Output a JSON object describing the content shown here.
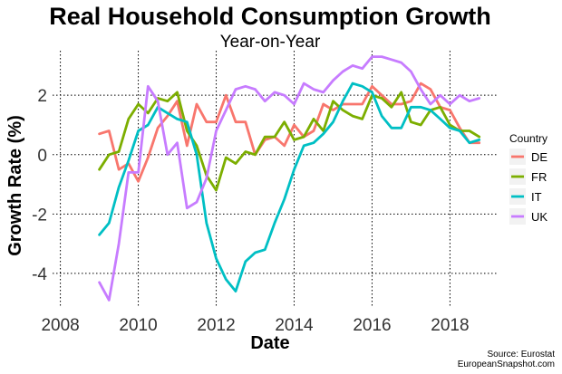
{
  "chart_data": {
    "type": "line",
    "title": "Real Household Consumption Growth",
    "subtitle": "Year-on-Year",
    "xlabel": "Date",
    "ylabel": "Growth Rate (%)",
    "xlim": [
      2007.8,
      2019.2
    ],
    "ylim": [
      -5.1,
      3.5
    ],
    "x_ticks": [
      2008,
      2010,
      2012,
      2014,
      2016,
      2018
    ],
    "y_ticks": [
      -4,
      -2,
      0,
      2
    ],
    "grid": true,
    "legend": {
      "title": "Country",
      "placement": "right"
    },
    "source_lines": [
      "Source: Eurostat",
      "EuropeanSnapshot.com"
    ],
    "x": [
      2009.0,
      2009.25,
      2009.5,
      2009.75,
      2010.0,
      2010.25,
      2010.5,
      2010.75,
      2011.0,
      2011.25,
      2011.5,
      2011.75,
      2012.0,
      2012.25,
      2012.5,
      2012.75,
      2013.0,
      2013.25,
      2013.5,
      2013.75,
      2014.0,
      2014.25,
      2014.5,
      2014.75,
      2015.0,
      2015.25,
      2015.5,
      2015.75,
      2016.0,
      2016.25,
      2016.5,
      2016.75,
      2017.0,
      2017.25,
      2017.5,
      2017.75,
      2018.0,
      2018.25,
      2018.5,
      2018.75
    ],
    "series": [
      {
        "name": "DE",
        "color": "#F8766D",
        "values": [
          0.7,
          0.8,
          -0.5,
          -0.3,
          -0.9,
          -0.1,
          0.9,
          1.3,
          1.8,
          0.3,
          1.7,
          1.1,
          1.1,
          2.0,
          1.1,
          1.1,
          0.0,
          0.5,
          0.6,
          0.3,
          1.0,
          0.6,
          0.8,
          1.7,
          1.5,
          1.7,
          1.7,
          1.7,
          2.3,
          2.0,
          1.7,
          1.7,
          1.8,
          2.4,
          2.2,
          1.6,
          1.5,
          0.9,
          0.4,
          0.4
        ]
      },
      {
        "name": "FR",
        "color": "#7CAE00",
        "values": [
          -0.5,
          0.0,
          0.1,
          1.2,
          1.7,
          1.4,
          1.9,
          1.8,
          2.1,
          0.8,
          0.3,
          -0.7,
          -1.2,
          -0.1,
          -0.3,
          0.1,
          0.0,
          0.6,
          0.6,
          1.1,
          0.5,
          0.6,
          1.2,
          0.8,
          1.8,
          1.5,
          1.3,
          1.2,
          2.0,
          1.9,
          1.6,
          2.1,
          1.1,
          1.0,
          1.5,
          1.6,
          1.0,
          0.8,
          0.8,
          0.6
        ]
      },
      {
        "name": "IT",
        "color": "#00BFC4",
        "values": [
          -2.7,
          -2.3,
          -1.1,
          -0.2,
          0.8,
          1.0,
          1.6,
          1.4,
          1.2,
          1.1,
          0.0,
          -2.3,
          -3.5,
          -4.2,
          -4.6,
          -3.6,
          -3.3,
          -3.2,
          -2.3,
          -1.5,
          -0.5,
          0.3,
          0.4,
          0.7,
          1.1,
          1.8,
          2.4,
          2.3,
          2.1,
          1.3,
          0.9,
          0.9,
          1.6,
          1.6,
          1.5,
          1.2,
          0.9,
          0.8,
          0.4,
          0.5
        ]
      },
      {
        "name": "UK",
        "color": "#C77CFF",
        "values": [
          -4.3,
          -4.9,
          -3.0,
          -0.6,
          -0.6,
          2.3,
          1.8,
          0.0,
          0.4,
          -1.8,
          -1.6,
          -0.8,
          0.8,
          1.5,
          2.2,
          2.3,
          2.2,
          1.8,
          2.1,
          2.0,
          1.7,
          2.4,
          2.2,
          2.1,
          2.5,
          2.8,
          3.0,
          2.9,
          3.3,
          3.3,
          3.2,
          3.1,
          2.8,
          2.2,
          1.7,
          2.0,
          1.7,
          2.0,
          1.8,
          1.9
        ]
      }
    ]
  }
}
